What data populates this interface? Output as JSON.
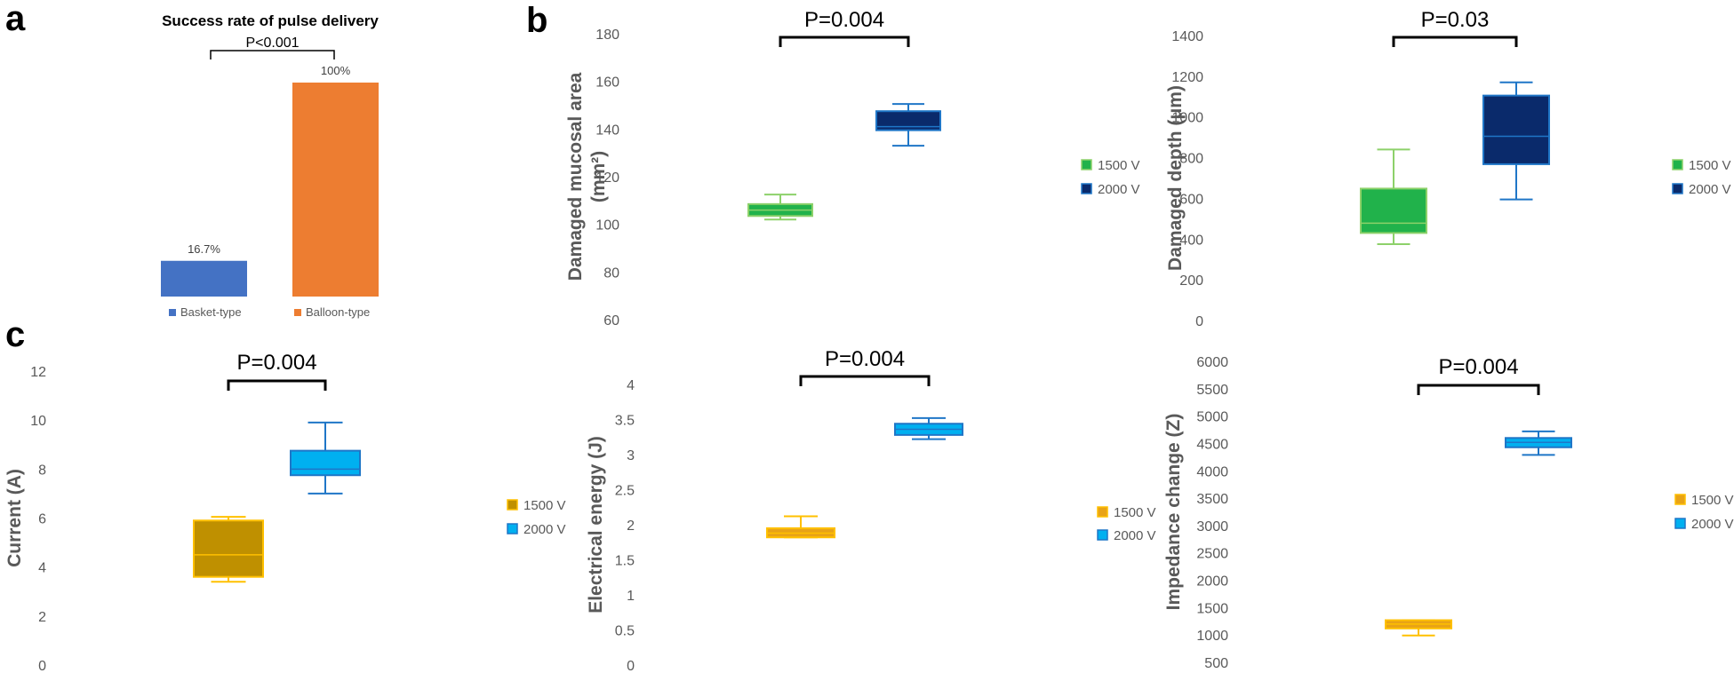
{
  "panel_labels": {
    "a": "a",
    "b": "b",
    "c": "c"
  },
  "chart_data": [
    {
      "id": "a",
      "type": "bar",
      "title": "Success rate of pulse delivery",
      "categories": [
        "Basket-type",
        "Balloon-type"
      ],
      "values": [
        16.7,
        100
      ],
      "value_labels": [
        "16.7%",
        "100%"
      ],
      "colors": [
        "#4472c4",
        "#ed7d31"
      ],
      "ylim": [
        0,
        100
      ],
      "annotation": "P<0.001",
      "legend": "bottom"
    },
    {
      "id": "b1",
      "type": "box",
      "ylabel_lines": [
        "Damaged mucosal area",
        "(mm²)"
      ],
      "ylim": [
        60,
        180
      ],
      "yticks": [
        60,
        80,
        100,
        120,
        140,
        160,
        180
      ],
      "annotation": "P=0.004",
      "legend": "right",
      "series": [
        {
          "name": "1500 V",
          "min": 102,
          "q1": 103.5,
          "median": 106,
          "q3": 108.5,
          "max": 112.5,
          "fill": "#21b24b",
          "stroke": "#8dd16a"
        },
        {
          "name": "2000 V",
          "min": 133,
          "q1": 139.5,
          "median": 141,
          "q3": 147.5,
          "max": 150.5,
          "fill": "#0a2a6b",
          "stroke": "#1f76c7"
        }
      ]
    },
    {
      "id": "b2",
      "type": "box",
      "ylabel_lines": [
        "Damaged depth (μm)"
      ],
      "ylim": [
        0,
        1400
      ],
      "yticks": [
        0,
        200,
        400,
        600,
        800,
        1000,
        1200,
        1400
      ],
      "annotation": "P=0.03",
      "legend": "right",
      "series": [
        {
          "name": "1500 V",
          "min": 375,
          "q1": 430,
          "median": 478,
          "q3": 648,
          "max": 840,
          "fill": "#21b24b",
          "stroke": "#8dd16a"
        },
        {
          "name": "2000 V",
          "min": 595,
          "q1": 768,
          "median": 905,
          "q3": 1105,
          "max": 1170,
          "fill": "#0a2a6b",
          "stroke": "#1f76c7"
        }
      ]
    },
    {
      "id": "c1",
      "type": "box",
      "ylabel_lines": [
        "Current (A)"
      ],
      "ylim": [
        0,
        12
      ],
      "yticks": [
        0,
        2,
        4,
        6,
        8,
        10,
        12
      ],
      "annotation": "P=0.004",
      "legend": "right",
      "series": [
        {
          "name": "1500 V",
          "min": 3.4,
          "q1": 3.6,
          "median": 4.5,
          "q3": 5.9,
          "max": 6.05,
          "fill": "#bf9000",
          "stroke": "#ffc000"
        },
        {
          "name": "2000 V",
          "min": 7.0,
          "q1": 7.75,
          "median": 8.0,
          "q3": 8.75,
          "max": 9.9,
          "fill": "#00b0f0",
          "stroke": "#1f76c7"
        }
      ]
    },
    {
      "id": "c2",
      "type": "box",
      "ylabel_lines": [
        "Electrical energy (J)"
      ],
      "ylim": [
        0,
        4
      ],
      "yticks": [
        0,
        0.5,
        1,
        1.5,
        2,
        2.5,
        3,
        3.5,
        4
      ],
      "annotation": "P=0.004",
      "legend": "right",
      "series": [
        {
          "name": "1500 V",
          "min": 1.82,
          "q1": 1.82,
          "median": 1.88,
          "q3": 1.95,
          "max": 2.12,
          "fill": "#e8a317",
          "stroke": "#ffc000"
        },
        {
          "name": "2000 V",
          "min": 3.22,
          "q1": 3.28,
          "median": 3.36,
          "q3": 3.44,
          "max": 3.52,
          "fill": "#00b0f0",
          "stroke": "#1f76c7"
        }
      ]
    },
    {
      "id": "c3",
      "type": "box",
      "ylabel_lines": [
        "Impedance change (Z)"
      ],
      "ylim": [
        500,
        6000
      ],
      "yticks": [
        500,
        1000,
        1500,
        2000,
        2500,
        3000,
        3500,
        4000,
        4500,
        5000,
        5500,
        6000
      ],
      "annotation": "P=0.004",
      "legend": "right",
      "series": [
        {
          "name": "1500 V",
          "min": 990,
          "q1": 1120,
          "median": 1200,
          "q3": 1270,
          "max": 1270,
          "fill": "#e8a317",
          "stroke": "#ffc000"
        },
        {
          "name": "2000 V",
          "min": 4290,
          "q1": 4430,
          "median": 4520,
          "q3": 4600,
          "max": 4720,
          "fill": "#00b0f0",
          "stroke": "#1f76c7"
        }
      ]
    }
  ]
}
